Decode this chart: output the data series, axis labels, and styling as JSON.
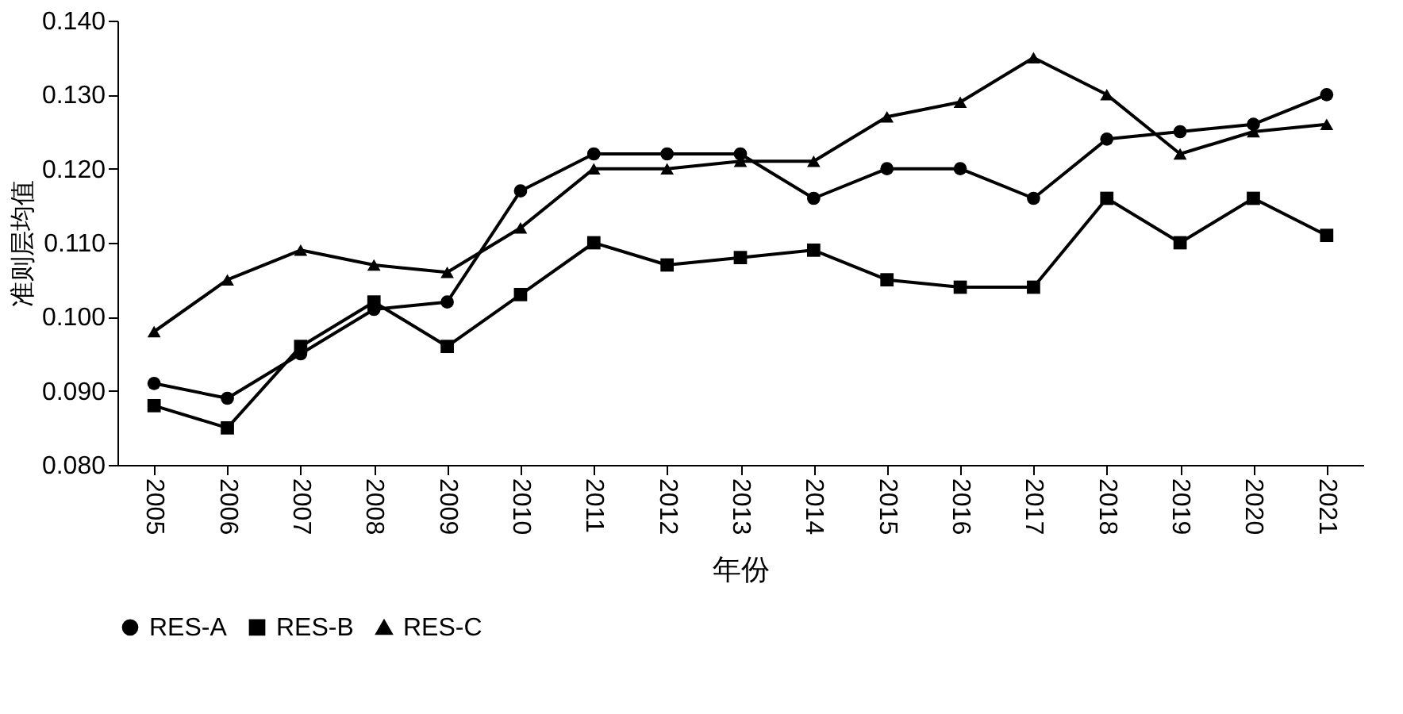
{
  "chart_data": {
    "type": "line",
    "xlabel": "年份",
    "ylabel": "准则层均值",
    "categories": [
      "2005",
      "2006",
      "2007",
      "2008",
      "2009",
      "2010",
      "2011",
      "2012",
      "2013",
      "2014",
      "2015",
      "2016",
      "2017",
      "2018",
      "2019",
      "2020",
      "2021"
    ],
    "series": [
      {
        "name": "RES-A",
        "color": "#000000",
        "marker": "circle",
        "values": [
          0.091,
          0.089,
          0.095,
          0.101,
          0.102,
          0.117,
          0.122,
          0.122,
          0.122,
          0.116,
          0.12,
          0.12,
          0.116,
          0.124,
          0.125,
          0.126,
          0.13
        ]
      },
      {
        "name": "RES-B",
        "color": "#000000",
        "marker": "square",
        "values": [
          0.088,
          0.085,
          0.096,
          0.102,
          0.096,
          0.103,
          0.11,
          0.107,
          0.108,
          0.109,
          0.105,
          0.104,
          0.104,
          0.116,
          0.11,
          0.116,
          0.111
        ]
      },
      {
        "name": "RES-C",
        "color": "#000000",
        "marker": "triangle",
        "values": [
          0.098,
          0.105,
          0.109,
          0.107,
          0.106,
          0.112,
          0.12,
          0.12,
          0.121,
          0.121,
          0.127,
          0.129,
          0.135,
          0.13,
          0.122,
          0.125,
          0.126
        ]
      }
    ],
    "ylim": [
      0.08,
      0.14
    ],
    "yticks": [
      {
        "value": 0.08,
        "label": "0.080"
      },
      {
        "value": 0.09,
        "label": "0.090"
      },
      {
        "value": 0.1,
        "label": "0.100"
      },
      {
        "value": 0.11,
        "label": "0.110"
      },
      {
        "value": 0.12,
        "label": "0.120"
      },
      {
        "value": 0.13,
        "label": "0.130"
      },
      {
        "value": 0.14,
        "label": "0.140"
      }
    ],
    "grid": false,
    "legend": "bottom",
    "line_style": "solid"
  }
}
